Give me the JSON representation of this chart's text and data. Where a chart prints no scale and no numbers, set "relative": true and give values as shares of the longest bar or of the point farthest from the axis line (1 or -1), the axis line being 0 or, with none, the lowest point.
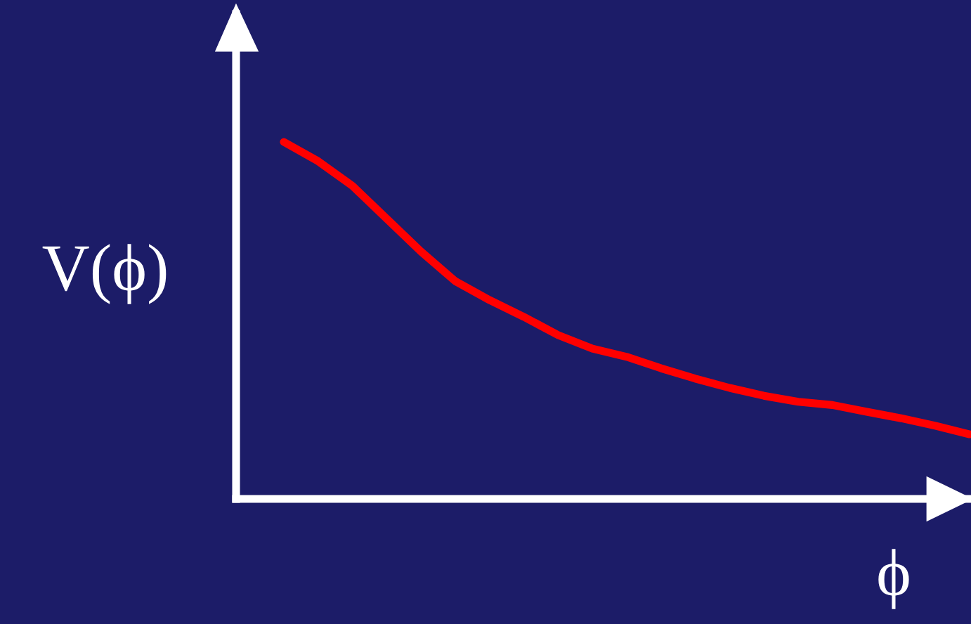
{
  "chart_data": {
    "type": "line",
    "relative": true,
    "xlabel": "ϕ",
    "ylabel": "V(ϕ)",
    "categories": [
      null,
      null,
      null,
      null,
      null,
      null,
      null,
      null,
      null,
      null,
      null,
      null,
      null,
      null,
      null,
      null,
      null,
      null,
      null,
      null,
      null
    ],
    "series": [
      {
        "color": "#ff0000",
        "values": [
          1,
          0.946,
          0.877,
          0.785,
          0.693,
          0.61,
          0.557,
          0.51,
          0.459,
          0.421,
          0.398,
          0.366,
          0.337,
          0.311,
          0.289,
          0.272,
          0.263,
          0.244,
          0.226,
          0.205,
          0.181
        ]
      }
    ],
    "grid": false,
    "legend": false
  }
}
